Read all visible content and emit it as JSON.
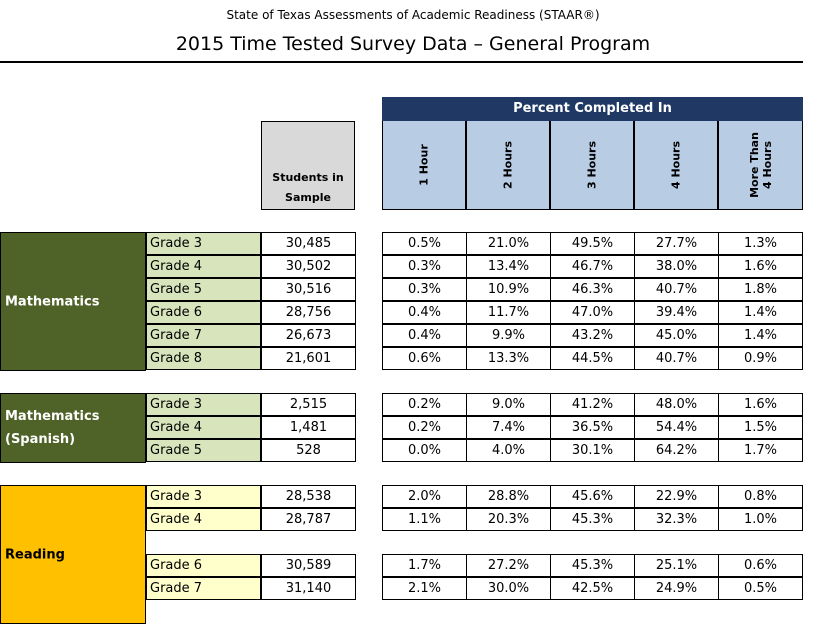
{
  "header": {
    "subtitle": "State of Texas Assessments of Academic Readiness (STAAR®)",
    "title": "2015 Time Tested Survey Data – General Program"
  },
  "columns": {
    "group_label": "Percent Completed In",
    "students": "Students in\nSample",
    "hours": [
      "1 Hour",
      "2 Hours",
      "3 Hours",
      "4 Hours",
      "More Than\n4 Hours"
    ]
  },
  "colors": {
    "header_navy": "#1f3864",
    "header_blue": "#b8cce4",
    "students_gray": "#d9d9d9",
    "math_green": "#4f6228",
    "math_grade_bg": "#d8e4bc",
    "reading_gold": "#ffc000",
    "reading_grade_bg": "#ffffcc"
  },
  "sections": [
    {
      "subject": "Mathematics",
      "style": "math",
      "rows": [
        {
          "grade": "Grade 3",
          "students": "30,485",
          "pct": [
            "0.5%",
            "21.0%",
            "49.5%",
            "27.7%",
            "1.3%"
          ]
        },
        {
          "grade": "Grade 4",
          "students": "30,502",
          "pct": [
            "0.3%",
            "13.4%",
            "46.7%",
            "38.0%",
            "1.6%"
          ]
        },
        {
          "grade": "Grade 5",
          "students": "30,516",
          "pct": [
            "0.3%",
            "10.9%",
            "46.3%",
            "40.7%",
            "1.8%"
          ]
        },
        {
          "grade": "Grade 6",
          "students": "28,756",
          "pct": [
            "0.4%",
            "11.7%",
            "47.0%",
            "39.4%",
            "1.4%"
          ]
        },
        {
          "grade": "Grade 7",
          "students": "26,673",
          "pct": [
            "0.4%",
            "9.9%",
            "43.2%",
            "45.0%",
            "1.4%"
          ]
        },
        {
          "grade": "Grade 8",
          "students": "21,601",
          "pct": [
            "0.6%",
            "13.3%",
            "44.5%",
            "40.7%",
            "0.9%"
          ]
        }
      ]
    },
    {
      "subject": "Mathematics\n(Spanish)",
      "style": "math",
      "rows": [
        {
          "grade": "Grade 3",
          "students": "2,515",
          "pct": [
            "0.2%",
            "9.0%",
            "41.2%",
            "48.0%",
            "1.6%"
          ]
        },
        {
          "grade": "Grade 4",
          "students": "1,481",
          "pct": [
            "0.2%",
            "7.4%",
            "36.5%",
            "54.4%",
            "1.5%"
          ]
        },
        {
          "grade": "Grade 5",
          "students": "528",
          "pct": [
            "0.0%",
            "4.0%",
            "30.1%",
            "64.2%",
            "1.7%"
          ]
        }
      ]
    },
    {
      "subject": "Reading",
      "style": "read",
      "rows": [
        {
          "grade": "Grade 3",
          "students": "28,538",
          "pct": [
            "2.0%",
            "28.8%",
            "45.6%",
            "22.9%",
            "0.8%"
          ]
        },
        {
          "grade": "Grade 4",
          "students": "28,787",
          "pct": [
            "1.1%",
            "20.3%",
            "45.3%",
            "32.3%",
            "1.0%"
          ]
        },
        {
          "grade": "Grade 6",
          "students": "30,589",
          "pct": [
            "1.7%",
            "27.2%",
            "45.3%",
            "25.1%",
            "0.6%"
          ]
        },
        {
          "grade": "Grade 7",
          "students": "31,140",
          "pct": [
            "2.1%",
            "30.0%",
            "42.5%",
            "24.9%",
            "0.5%"
          ]
        }
      ]
    }
  ]
}
